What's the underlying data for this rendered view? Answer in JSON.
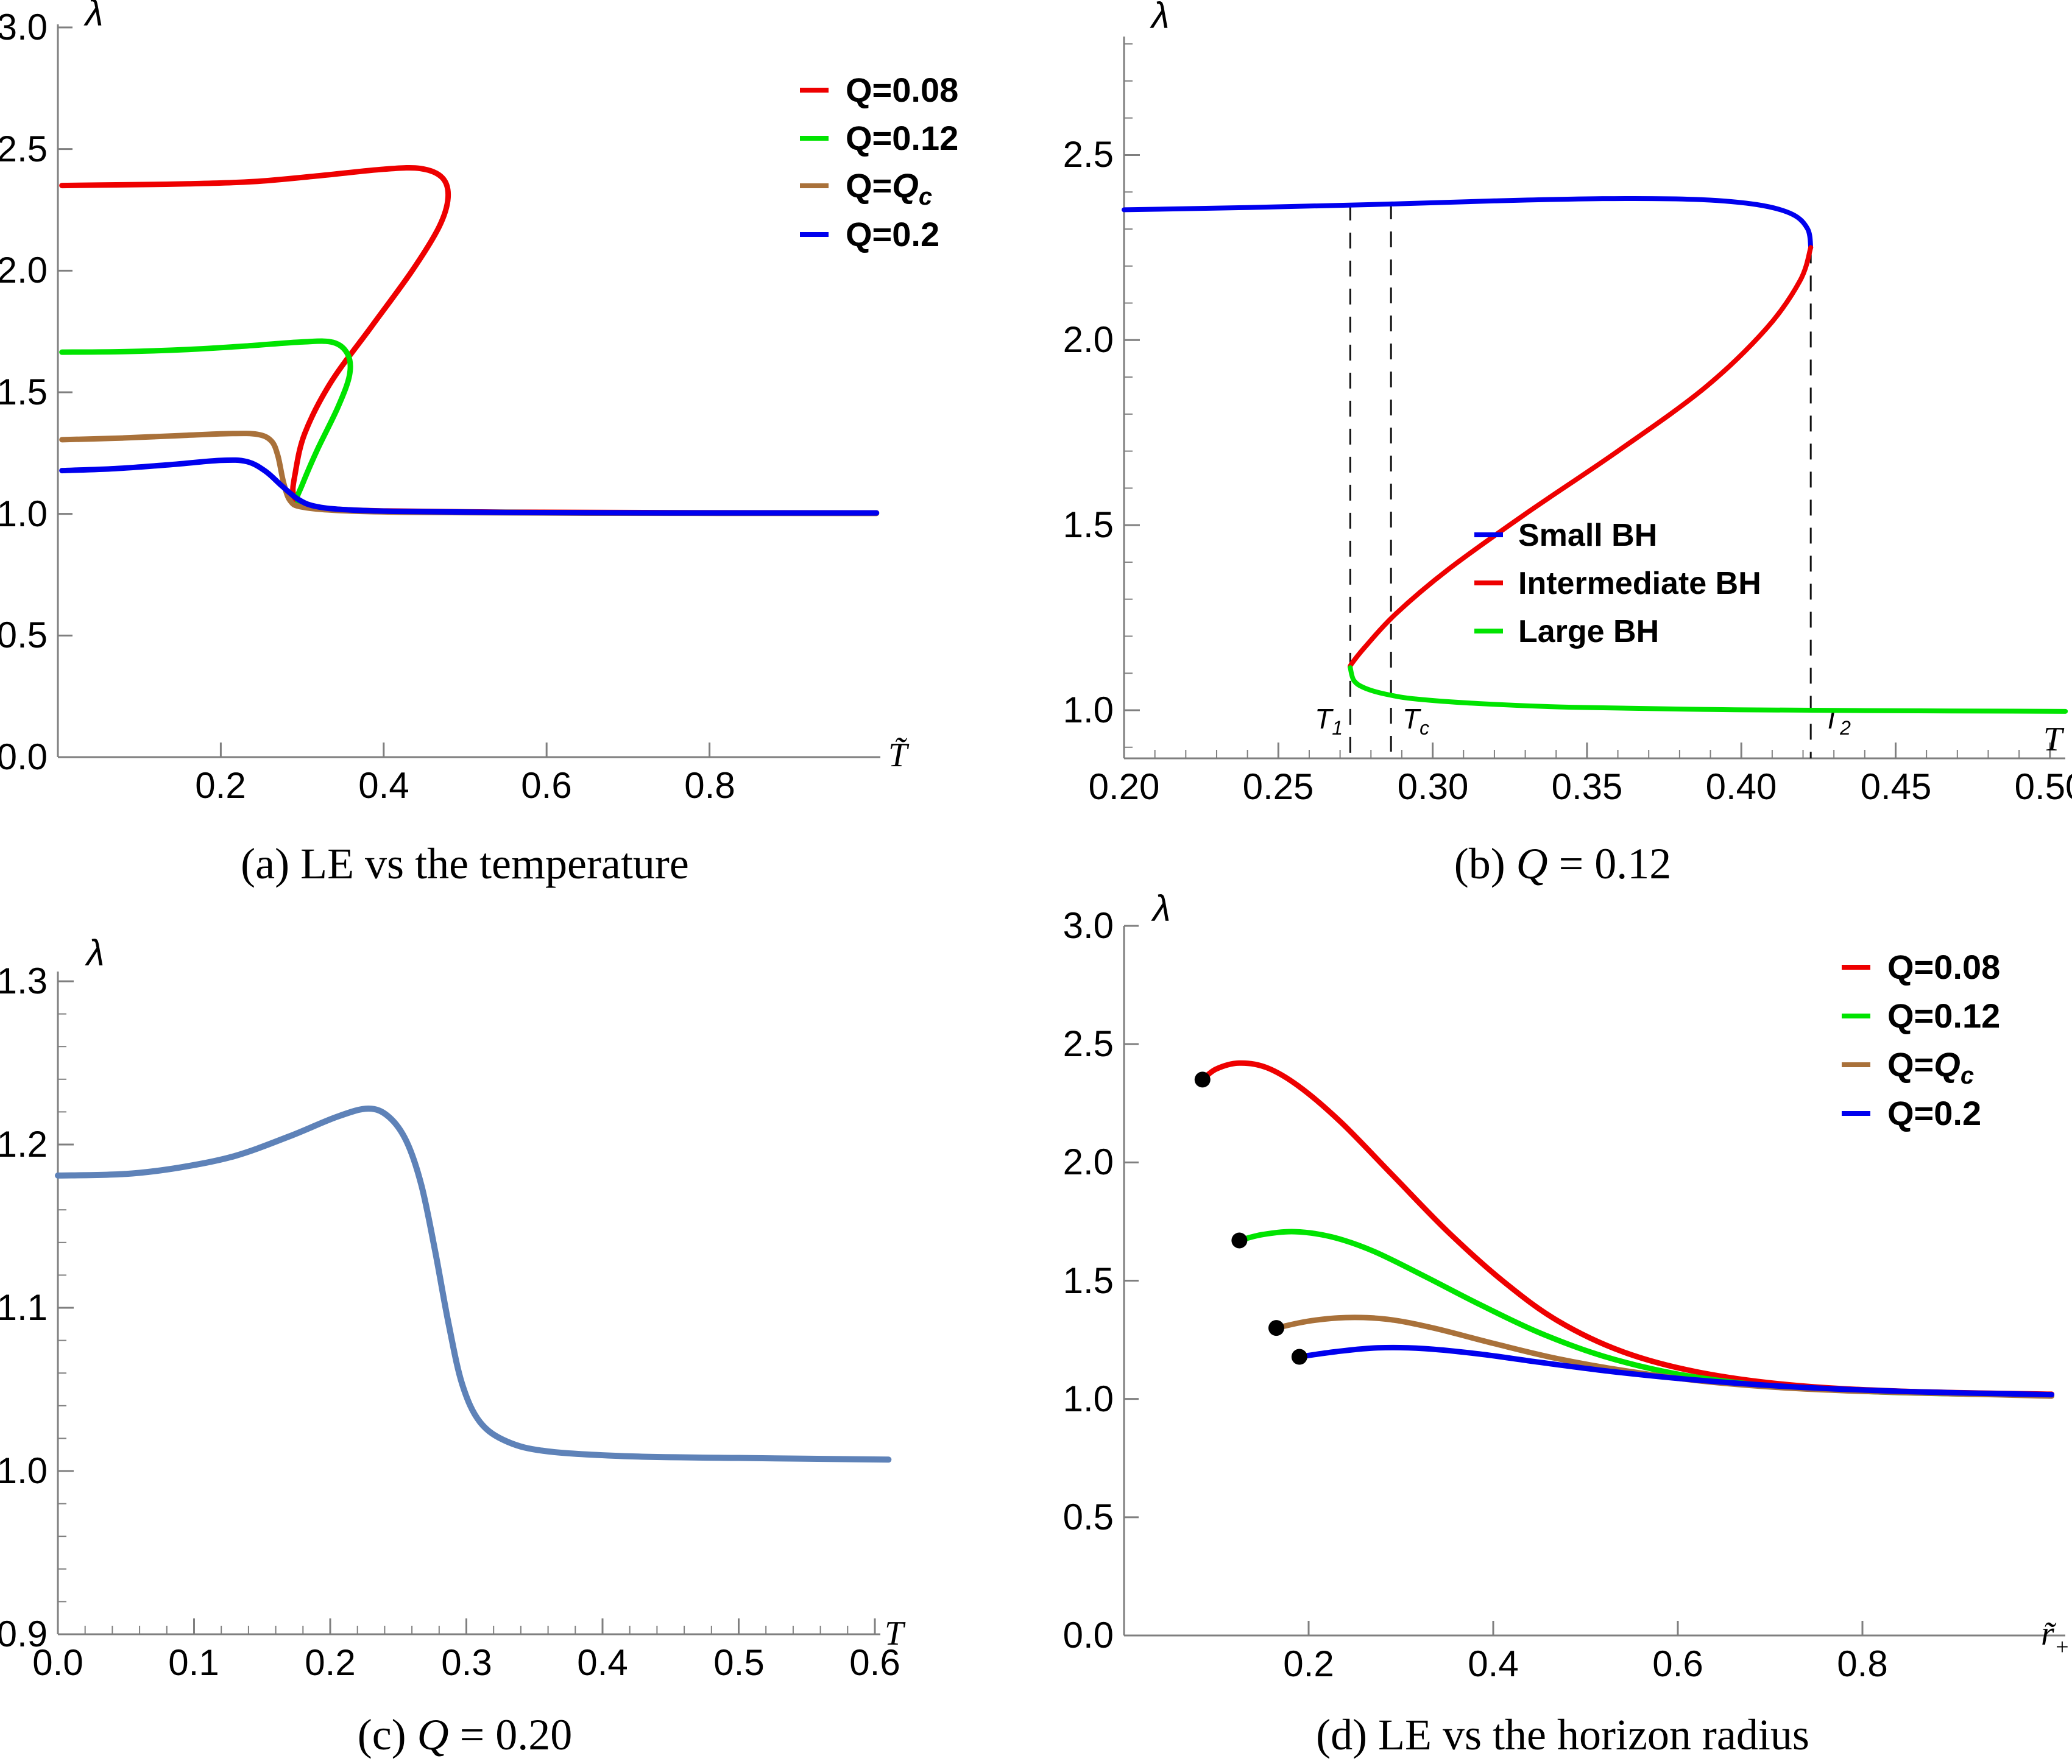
{
  "background": "#ffffff",
  "chart_data": [
    {
      "id": "a",
      "type": "line",
      "title": "(a) LE vs the temperature",
      "xlabel": "T̃",
      "ylabel": "λ",
      "xlim": [
        0,
        1.01
      ],
      "ylim": [
        0,
        3.0
      ],
      "grid": false,
      "legend_position": "top-right",
      "xticks": {
        "labels": [
          "0.2",
          "0.4",
          "0.6",
          "0.8"
        ],
        "values": [
          0.2,
          0.4,
          0.6,
          0.8
        ]
      },
      "yticks": {
        "labels": [
          "3.0",
          "2.5",
          "2.0",
          "1.5",
          "1.0",
          "0.5",
          "0.0"
        ],
        "values": [
          3.0,
          2.5,
          2.0,
          1.5,
          1.0,
          0.5,
          0.0
        ]
      },
      "series": [
        {
          "name": "Q=0.08",
          "color": "#ee0000",
          "points": [
            [
              0.005,
              2.35
            ],
            [
              0.08,
              2.353
            ],
            [
              0.16,
              2.357
            ],
            [
              0.24,
              2.366
            ],
            [
              0.32,
              2.39
            ],
            [
              0.4,
              2.417
            ],
            [
              0.445,
              2.42
            ],
            [
              0.472,
              2.382
            ],
            [
              0.479,
              2.3
            ],
            [
              0.468,
              2.18
            ],
            [
              0.435,
              2.0
            ],
            [
              0.385,
              1.77
            ],
            [
              0.335,
              1.54
            ],
            [
              0.303,
              1.33
            ],
            [
              0.291,
              1.16
            ],
            [
              0.289,
              1.08
            ],
            [
              0.298,
              1.04
            ],
            [
              0.33,
              1.022
            ],
            [
              0.4,
              1.012
            ],
            [
              0.55,
              1.007
            ],
            [
              0.75,
              1.005
            ],
            [
              1.005,
              1.004
            ]
          ]
        },
        {
          "name": "Q=0.12",
          "color": "#00e400",
          "points": [
            [
              0.005,
              1.665
            ],
            [
              0.08,
              1.667
            ],
            [
              0.16,
              1.676
            ],
            [
              0.23,
              1.69
            ],
            [
              0.3,
              1.707
            ],
            [
              0.338,
              1.705
            ],
            [
              0.356,
              1.655
            ],
            [
              0.358,
              1.57
            ],
            [
              0.344,
              1.44
            ],
            [
              0.318,
              1.26
            ],
            [
              0.3,
              1.12
            ],
            [
              0.294,
              1.06
            ],
            [
              0.305,
              1.032
            ],
            [
              0.35,
              1.015
            ],
            [
              0.45,
              1.008
            ],
            [
              0.65,
              1.004
            ],
            [
              1.005,
              1.003
            ]
          ]
        },
        {
          "name": "Q=Qc",
          "name_parts": {
            "pre": "Q=",
            "q": "Q",
            "sub": "c"
          },
          "color": "#a9713a",
          "points": [
            [
              0.005,
              1.305
            ],
            [
              0.08,
              1.312
            ],
            [
              0.15,
              1.322
            ],
            [
              0.21,
              1.33
            ],
            [
              0.245,
              1.327
            ],
            [
              0.262,
              1.3
            ],
            [
              0.27,
              1.24
            ],
            [
              0.277,
              1.13
            ],
            [
              0.285,
              1.055
            ],
            [
              0.3,
              1.028
            ],
            [
              0.35,
              1.013
            ],
            [
              0.45,
              1.006
            ],
            [
              0.65,
              1.003
            ],
            [
              1.005,
              1.002
            ]
          ]
        },
        {
          "name": "Q=0.2",
          "color": "#0000ee",
          "points": [
            [
              0.005,
              1.178
            ],
            [
              0.07,
              1.186
            ],
            [
              0.14,
              1.203
            ],
            [
              0.2,
              1.22
            ],
            [
              0.232,
              1.215
            ],
            [
              0.255,
              1.175
            ],
            [
              0.275,
              1.115
            ],
            [
              0.295,
              1.06
            ],
            [
              0.315,
              1.032
            ],
            [
              0.35,
              1.018
            ],
            [
              0.42,
              1.01
            ],
            [
              0.55,
              1.006
            ],
            [
              0.75,
              1.004
            ],
            [
              1.005,
              1.004
            ]
          ]
        }
      ]
    },
    {
      "id": "b",
      "type": "line",
      "title": "(b) Q = 0.12",
      "title_parts": {
        "pre": "(b) ",
        "q": "Q",
        "rest": " = 0.12"
      },
      "xlabel": "T",
      "ylabel": "λ",
      "xlim": [
        0.2,
        0.505
      ],
      "ylim": [
        0.87,
        2.82
      ],
      "grid": false,
      "legend_position": "center",
      "xticks": {
        "labels": [
          "0.20",
          "0.25",
          "0.30",
          "0.35",
          "0.40",
          "0.45",
          "0.50"
        ],
        "values": [
          0.2,
          0.25,
          0.3,
          0.35,
          0.4,
          0.45,
          0.5
        ]
      },
      "yticks": {
        "labels": [
          "2.5",
          "2.0",
          "1.5",
          "1.0"
        ],
        "values": [
          2.5,
          2.0,
          1.5,
          1.0
        ]
      },
      "series": [
        {
          "name": "Small BH",
          "color": "#0000ee",
          "points": [
            [
              0.2,
              2.352
            ],
            [
              0.24,
              2.358
            ],
            [
              0.28,
              2.366
            ],
            [
              0.32,
              2.376
            ],
            [
              0.355,
              2.382
            ],
            [
              0.385,
              2.38
            ],
            [
              0.405,
              2.366
            ],
            [
              0.4165,
              2.34
            ],
            [
              0.4215,
              2.3
            ],
            [
              0.4225,
              2.25
            ]
          ]
        },
        {
          "name": "Intermediate BH",
          "color": "#ee0000",
          "points": [
            [
              0.4225,
              2.25
            ],
            [
              0.419,
              2.16
            ],
            [
              0.408,
              2.03
            ],
            [
              0.388,
              1.87
            ],
            [
              0.36,
              1.7
            ],
            [
              0.33,
              1.53
            ],
            [
              0.305,
              1.38
            ],
            [
              0.288,
              1.26
            ],
            [
              0.278,
              1.17
            ],
            [
              0.2737,
              1.125
            ],
            [
              0.2733,
              1.115
            ]
          ]
        },
        {
          "name": "Large BH",
          "color": "#00e400",
          "points": [
            [
              0.2733,
              1.115
            ],
            [
              0.2745,
              1.08
            ],
            [
              0.278,
              1.06
            ],
            [
              0.285,
              1.043
            ],
            [
              0.295,
              1.03
            ],
            [
              0.315,
              1.018
            ],
            [
              0.345,
              1.008
            ],
            [
              0.39,
              1.002
            ],
            [
              0.44,
              0.999
            ],
            [
              0.505,
              0.997
            ]
          ]
        }
      ],
      "annotations": {
        "vlines": [
          {
            "label": "T",
            "sub": "1",
            "x": 0.2733,
            "top": 2.366
          },
          {
            "label": "T",
            "sub": "c",
            "x": 0.2865,
            "top": 2.369
          },
          {
            "label": "T",
            "sub": "2",
            "x": 0.4225,
            "top": 2.25
          }
        ]
      }
    },
    {
      "id": "c",
      "type": "line",
      "title": "(c) Q = 0.20",
      "title_parts": {
        "pre": "(c) ",
        "q": "Q",
        "rest": " = 0.20"
      },
      "xlabel": "T",
      "ylabel": "λ",
      "xlim": [
        0,
        0.61
      ],
      "ylim": [
        0.9,
        1.31
      ],
      "grid": false,
      "xticks": {
        "labels": [
          "0.0",
          "0.1",
          "0.2",
          "0.3",
          "0.4",
          "0.5",
          "0.6"
        ],
        "values": [
          0.0,
          0.1,
          0.2,
          0.3,
          0.4,
          0.5,
          0.6
        ]
      },
      "yticks": {
        "labels": [
          "1.3",
          "1.2",
          "1.1",
          "1.0",
          "0.9"
        ],
        "values": [
          1.3,
          1.2,
          1.1,
          1.0,
          0.9
        ]
      },
      "series": [
        {
          "name": "Q=0.20",
          "color": "#5e82b8",
          "points": [
            [
              0.0,
              1.181
            ],
            [
              0.05,
              1.182
            ],
            [
              0.09,
              1.186
            ],
            [
              0.13,
              1.193
            ],
            [
              0.17,
              1.205
            ],
            [
              0.205,
              1.217
            ],
            [
              0.228,
              1.222
            ],
            [
              0.243,
              1.217
            ],
            [
              0.256,
              1.202
            ],
            [
              0.267,
              1.175
            ],
            [
              0.277,
              1.135
            ],
            [
              0.287,
              1.09
            ],
            [
              0.297,
              1.053
            ],
            [
              0.31,
              1.03
            ],
            [
              0.33,
              1.018
            ],
            [
              0.36,
              1.012
            ],
            [
              0.42,
              1.009
            ],
            [
              0.5,
              1.008
            ],
            [
              0.61,
              1.007
            ]
          ]
        }
      ]
    },
    {
      "id": "d",
      "type": "line",
      "title": "(d) LE vs the horizon radius",
      "xlabel": "r̃+",
      "xlabel_parts": {
        "base": "r̃",
        "sub": "+"
      },
      "ylabel": "λ",
      "xlim": [
        0,
        1.01
      ],
      "ylim": [
        0,
        3.0
      ],
      "grid": false,
      "legend_position": "top-right",
      "xticks": {
        "labels": [
          "0.2",
          "0.4",
          "0.6",
          "0.8"
        ],
        "values": [
          0.2,
          0.4,
          0.6,
          0.8
        ]
      },
      "yticks": {
        "labels": [
          "3.0",
          "2.5",
          "2.0",
          "1.5",
          "1.0",
          "0.5",
          "0.0"
        ],
        "values": [
          3.0,
          2.5,
          2.0,
          1.5,
          1.0,
          0.5,
          0.0
        ]
      },
      "series": [
        {
          "name": "Q=0.08",
          "color": "#ee0000",
          "start_dot": true,
          "points": [
            [
              0.085,
              2.35
            ],
            [
              0.1,
              2.395
            ],
            [
              0.125,
              2.42
            ],
            [
              0.155,
              2.4
            ],
            [
              0.19,
              2.32
            ],
            [
              0.235,
              2.17
            ],
            [
              0.29,
              1.95
            ],
            [
              0.35,
              1.71
            ],
            [
              0.41,
              1.5
            ],
            [
              0.47,
              1.33
            ],
            [
              0.54,
              1.2
            ],
            [
              0.62,
              1.115
            ],
            [
              0.72,
              1.06
            ],
            [
              0.84,
              1.033
            ],
            [
              1.005,
              1.02
            ]
          ]
        },
        {
          "name": "Q=0.12",
          "color": "#00e400",
          "start_dot": true,
          "points": [
            [
              0.125,
              1.67
            ],
            [
              0.15,
              1.695
            ],
            [
              0.185,
              1.707
            ],
            [
              0.225,
              1.685
            ],
            [
              0.27,
              1.625
            ],
            [
              0.325,
              1.52
            ],
            [
              0.385,
              1.4
            ],
            [
              0.45,
              1.28
            ],
            [
              0.52,
              1.18
            ],
            [
              0.6,
              1.105
            ],
            [
              0.7,
              1.055
            ],
            [
              0.83,
              1.028
            ],
            [
              1.005,
              1.015
            ]
          ]
        },
        {
          "name": "Q=Qc",
          "name_parts": {
            "pre": "Q=",
            "q": "Q",
            "sub": "c"
          },
          "color": "#a9713a",
          "start_dot": true,
          "points": [
            [
              0.165,
              1.3
            ],
            [
              0.2,
              1.329
            ],
            [
              0.24,
              1.344
            ],
            [
              0.285,
              1.337
            ],
            [
              0.335,
              1.3
            ],
            [
              0.4,
              1.235
            ],
            [
              0.47,
              1.17
            ],
            [
              0.55,
              1.115
            ],
            [
              0.65,
              1.066
            ],
            [
              0.78,
              1.035
            ],
            [
              1.005,
              1.012
            ]
          ]
        },
        {
          "name": "Q=0.2",
          "color": "#0000ee",
          "start_dot": true,
          "points": [
            [
              0.19,
              1.178
            ],
            [
              0.23,
              1.2
            ],
            [
              0.275,
              1.216
            ],
            [
              0.325,
              1.213
            ],
            [
              0.385,
              1.19
            ],
            [
              0.45,
              1.155
            ],
            [
              0.53,
              1.115
            ],
            [
              0.62,
              1.08
            ],
            [
              0.73,
              1.05
            ],
            [
              0.86,
              1.03
            ],
            [
              1.005,
              1.018
            ]
          ]
        }
      ]
    }
  ]
}
